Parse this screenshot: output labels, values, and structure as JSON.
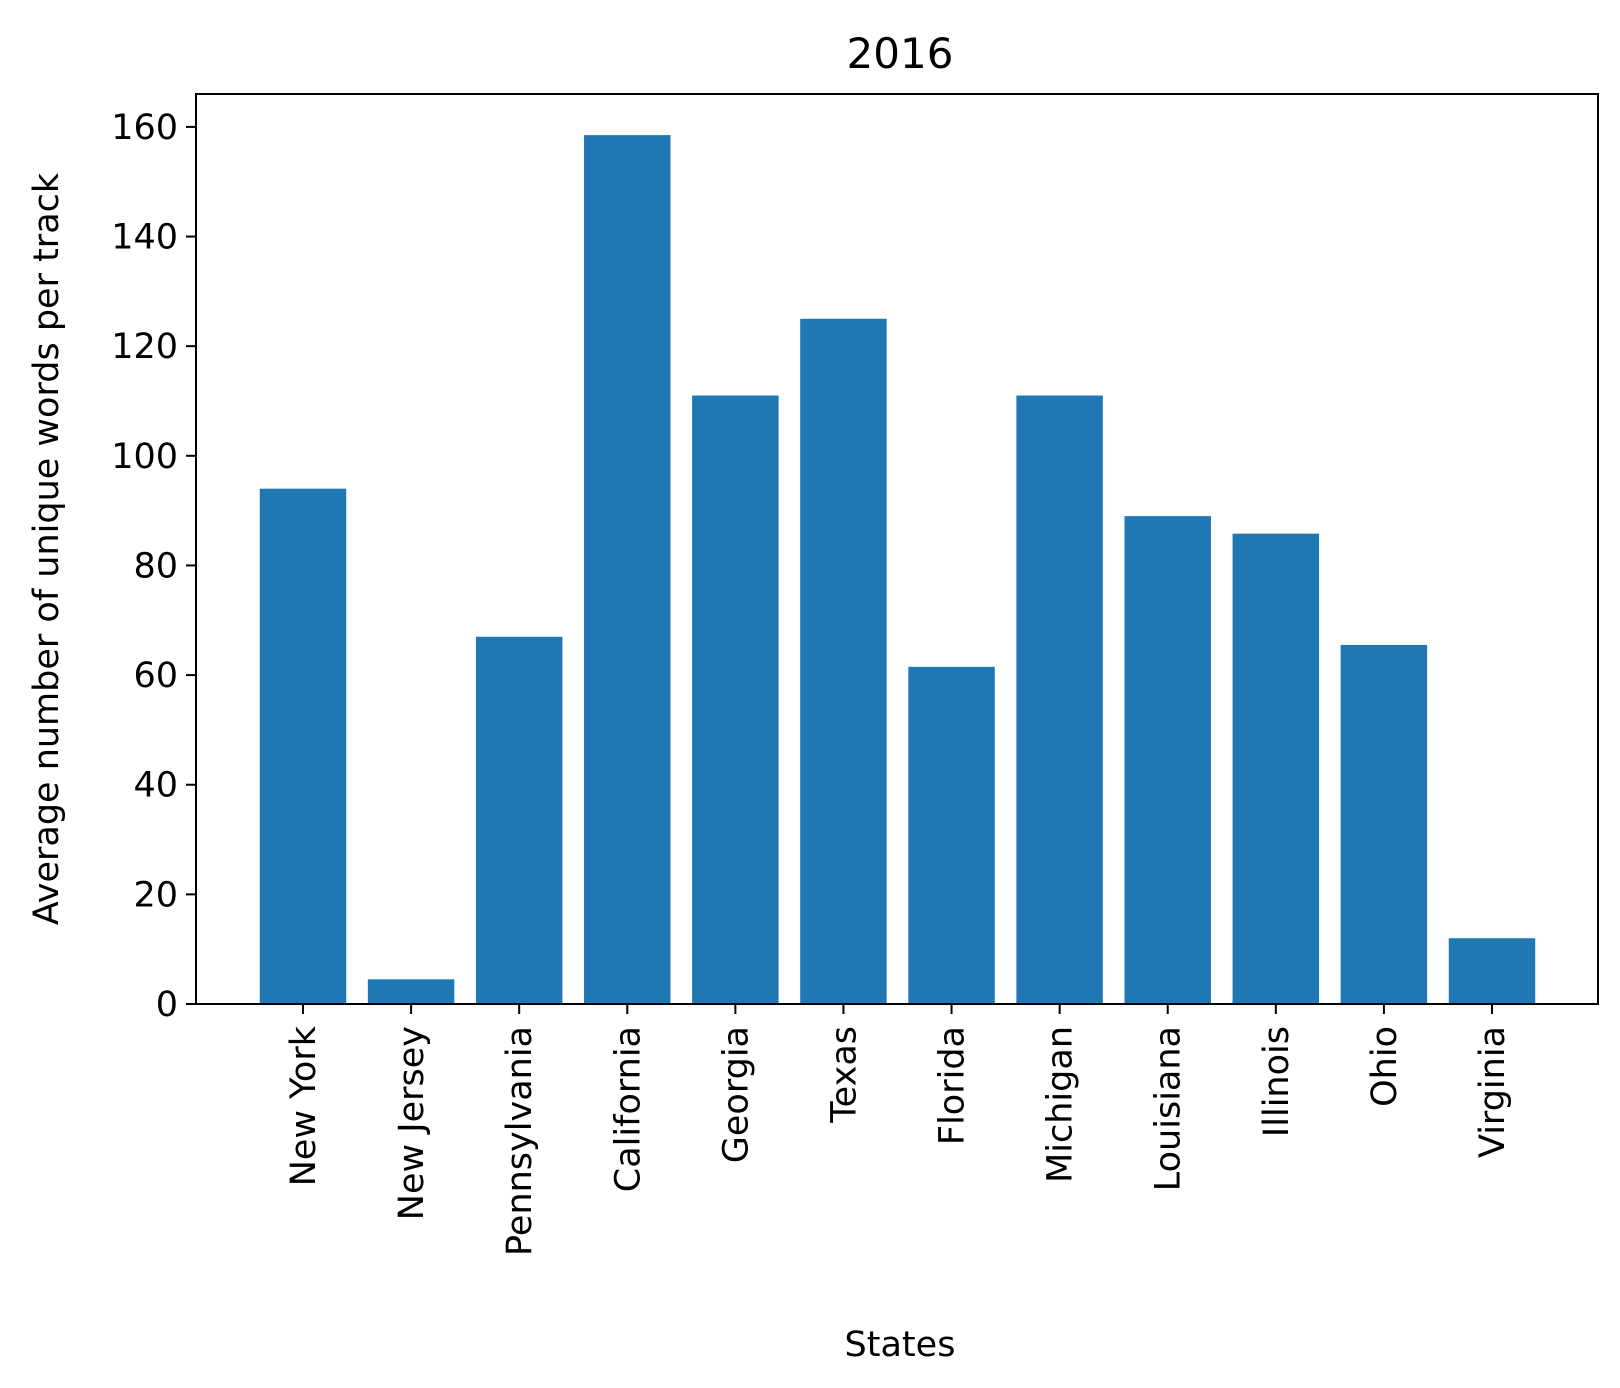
{
  "chart_data": {
    "type": "bar",
    "title": "2016",
    "xlabel": "States",
    "ylabel": "Average number of unique words per track",
    "categories": [
      "New York",
      "New Jersey",
      "Pennsylvania",
      "California",
      "Georgia",
      "Texas",
      "Florida",
      "Michigan",
      "Louisiana",
      "Illinois",
      "Ohio",
      "Virginia"
    ],
    "values": [
      94,
      4.5,
      67,
      158.5,
      111,
      125,
      61.5,
      111,
      89,
      85.8,
      65.5,
      12
    ],
    "ylim": [
      0,
      166
    ],
    "yticks": [
      0,
      20,
      40,
      60,
      80,
      100,
      120,
      140,
      160
    ],
    "grid": false,
    "bar_color": "#1f77b4"
  }
}
